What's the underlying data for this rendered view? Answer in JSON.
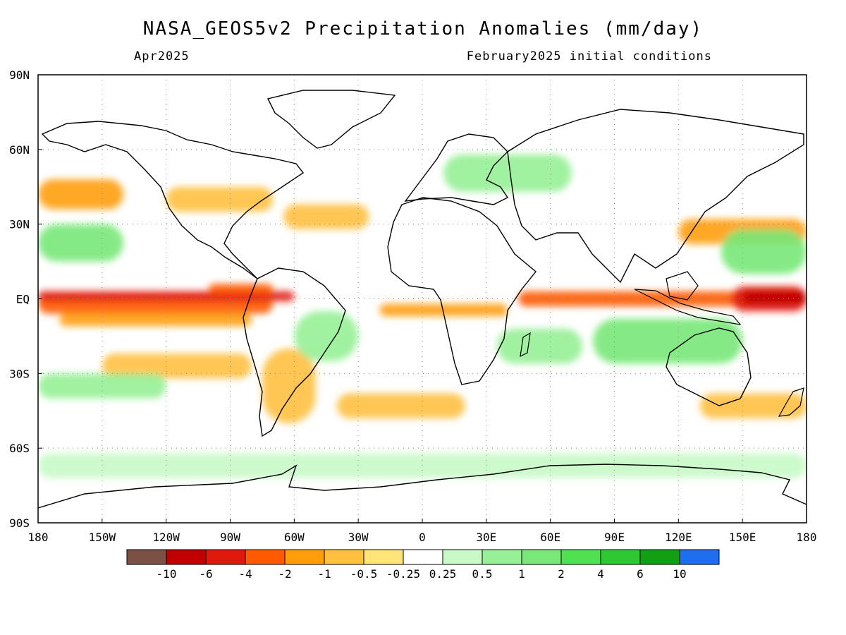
{
  "title": "NASA_GEOS5v2 Precipitation Anomalies (mm/day)",
  "subtitle_left": "Apr2025",
  "subtitle_right": "February2025 initial conditions",
  "axes": {
    "lat_ticks": [
      "90N",
      "60N",
      "30N",
      "EQ",
      "30S",
      "60S",
      "90S"
    ],
    "lon_ticks": [
      "180",
      "150W",
      "120W",
      "90W",
      "60W",
      "30W",
      "0",
      "30E",
      "60E",
      "90E",
      "120E",
      "150E",
      "180"
    ]
  },
  "colorbar": {
    "labels": [
      "-10",
      "-6",
      "-4",
      "-2",
      "-1",
      "-0.5",
      "-0.25",
      "0.25",
      "0.5",
      "1",
      "2",
      "4",
      "6",
      "10"
    ],
    "colors": [
      "#7d5046",
      "#c00000",
      "#e01a0a",
      "#ff5a00",
      "#ff9e0a",
      "#ffc040",
      "#ffe47a",
      "#ffffff",
      "#c8fac8",
      "#96f096",
      "#78e878",
      "#50e050",
      "#30c830",
      "#12a012",
      "#1e6ef0"
    ]
  },
  "chart_data": {
    "type": "heatmap",
    "title": "NASA_GEOS5v2 Precipitation Anomalies (mm/day)",
    "x_range": [
      -180,
      180
    ],
    "y_range": [
      -90,
      90
    ],
    "features": [
      {
        "lon": -180,
        "lat": 2,
        "w": 110,
        "h": 8,
        "level": 3
      },
      {
        "lon": -180,
        "lat": 3,
        "w": 120,
        "h": 4,
        "level": 2
      },
      {
        "lon": -170,
        "lat": -6,
        "w": 90,
        "h": 5,
        "level": 4
      },
      {
        "lon": -100,
        "lat": 6,
        "w": 30,
        "h": 4,
        "level": 3
      },
      {
        "lon": 45,
        "lat": 3,
        "w": 110,
        "h": 6,
        "level": 3
      },
      {
        "lon": 145,
        "lat": 5,
        "w": 35,
        "h": 10,
        "level": 2
      },
      {
        "lon": 150,
        "lat": 3,
        "w": 30,
        "h": 5,
        "level": 1
      },
      {
        "lon": -20,
        "lat": -2,
        "w": 60,
        "h": 5,
        "level": 4
      },
      {
        "lon": -180,
        "lat": 48,
        "w": 40,
        "h": 12,
        "level": 4
      },
      {
        "lon": -120,
        "lat": 45,
        "w": 50,
        "h": 10,
        "level": 5
      },
      {
        "lon": -65,
        "lat": 38,
        "w": 40,
        "h": 10,
        "level": 5
      },
      {
        "lon": -150,
        "lat": -22,
        "w": 70,
        "h": 10,
        "level": 5
      },
      {
        "lon": -75,
        "lat": -20,
        "w": 25,
        "h": 30,
        "level": 5
      },
      {
        "lon": -40,
        "lat": -38,
        "w": 60,
        "h": 10,
        "level": 5
      },
      {
        "lon": 120,
        "lat": 32,
        "w": 60,
        "h": 10,
        "level": 4
      },
      {
        "lon": 130,
        "lat": -38,
        "w": 50,
        "h": 10,
        "level": 5
      },
      {
        "lon": -180,
        "lat": 30,
        "w": 40,
        "h": 15,
        "level": 10
      },
      {
        "lon": 140,
        "lat": 28,
        "w": 40,
        "h": 18,
        "level": 10
      },
      {
        "lon": 80,
        "lat": -8,
        "w": 70,
        "h": 18,
        "level": 10
      },
      {
        "lon": 35,
        "lat": -12,
        "w": 40,
        "h": 14,
        "level": 9
      },
      {
        "lon": -180,
        "lat": -62,
        "w": 360,
        "h": 10,
        "level": 8
      },
      {
        "lon": -60,
        "lat": -5,
        "w": 30,
        "h": 20,
        "level": 9
      },
      {
        "lon": 10,
        "lat": 58,
        "w": 60,
        "h": 15,
        "level": 9
      },
      {
        "lon": -180,
        "lat": -30,
        "w": 60,
        "h": 10,
        "level": 9
      }
    ]
  }
}
